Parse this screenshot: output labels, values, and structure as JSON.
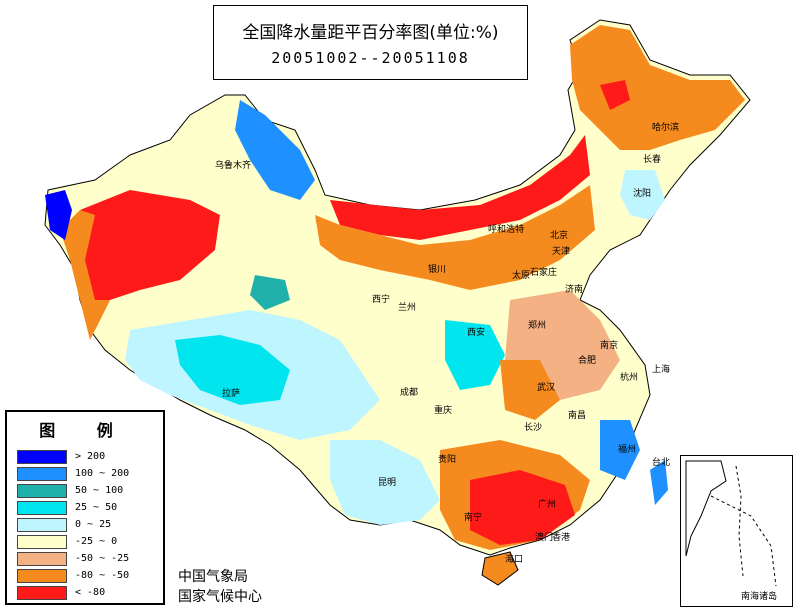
{
  "title": "全国降水量距平百分率图(单位:%)",
  "subtitle": "20051002--20051108",
  "legend": {
    "heading": "图    例",
    "items": [
      {
        "label": "> 200",
        "color": "#0000ff"
      },
      {
        "label": "100 ~ 200",
        "color": "#1e90ff"
      },
      {
        "label": "50 ~ 100",
        "color": "#20b2aa"
      },
      {
        "label": "25 ~ 50",
        "color": "#00e5ee"
      },
      {
        "label": "0 ~ 25",
        "color": "#bff5ff"
      },
      {
        "label": "-25 ~ 0",
        "color": "#ffffcc"
      },
      {
        "label": "-50 ~ -25",
        "color": "#f4b183"
      },
      {
        "label": "-80 ~ -50",
        "color": "#f58a1f"
      },
      {
        "label": "< -80",
        "color": "#ff1a1a"
      }
    ]
  },
  "organizations": [
    "中国气象局",
    "国家气候中心"
  ],
  "inset_label": "南海诸岛",
  "cities": [
    "乌鲁木齐",
    "拉萨",
    "西宁",
    "兰州",
    "银川",
    "呼和浩特",
    "太原",
    "石家庄",
    "济南",
    "郑州",
    "西安",
    "成都",
    "重庆",
    "贵阳",
    "昆明",
    "南宁",
    "广州",
    "海口",
    "长沙",
    "武汉",
    "南昌",
    "福州",
    "台北",
    "杭州",
    "上海",
    "南京",
    "合肥",
    "北京",
    "天津",
    "沈阳",
    "长春",
    "哈尔滨",
    "香港",
    "澳门"
  ],
  "colors": {
    "red": "#ff1a1a",
    "orange": "#f58a1f",
    "tan": "#f4b183",
    "yellow": "#ffffcc",
    "pale": "#bff5ff",
    "cyan": "#00e5ee",
    "teal": "#20b2aa",
    "blue": "#1e90ff",
    "deep": "#0000ff"
  }
}
